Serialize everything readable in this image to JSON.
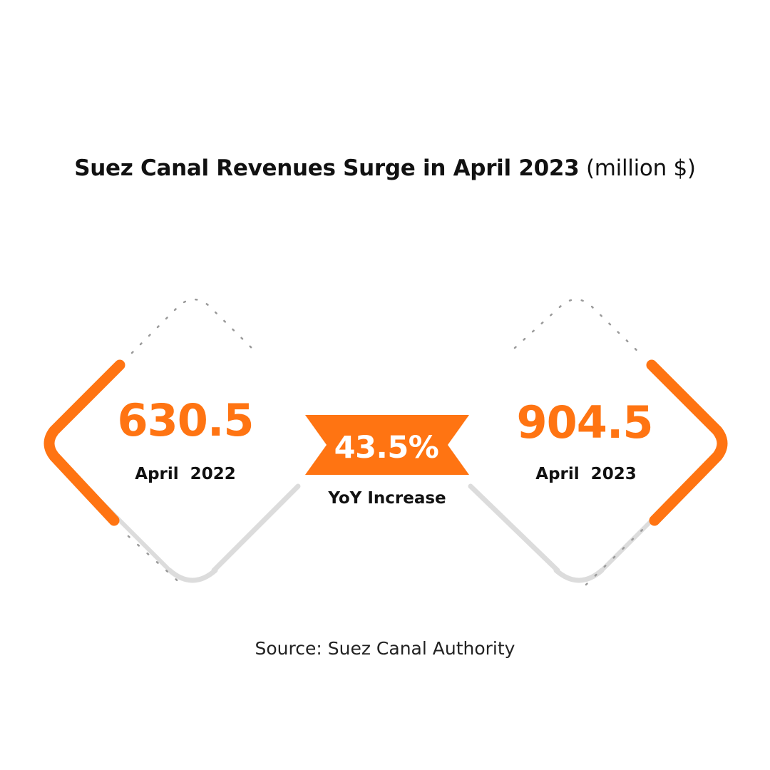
{
  "title": {
    "main": "Suez Canal Revenues Surge in April 2023",
    "unit": "(million $)"
  },
  "source": "Source: Suez Canal Authority",
  "colors": {
    "accent": "#ff7412",
    "text": "#111111",
    "frame": "#d9d9d9"
  },
  "chart_data": {
    "type": "table",
    "title": "Suez Canal Revenues Surge in April 2023",
    "unit": "(million $)",
    "categories": [
      "April  2022",
      "April  2023"
    ],
    "values": [
      630.5,
      904.5
    ],
    "display_values": [
      "630.5",
      "904.5"
    ],
    "change": {
      "value": 43.5,
      "display": "43.5%",
      "label": "YoY Increase"
    }
  }
}
